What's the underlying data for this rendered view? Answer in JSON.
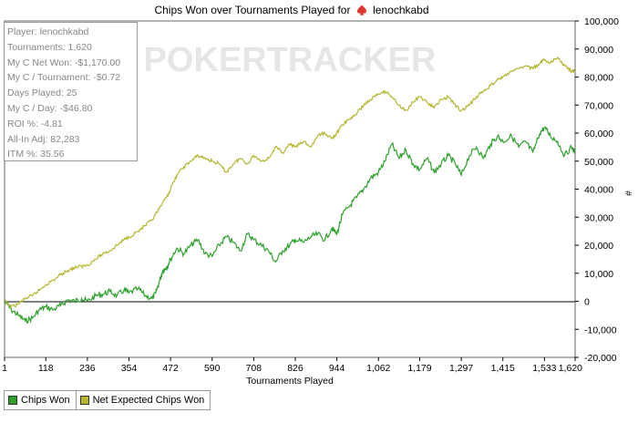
{
  "chart_data": {
    "type": "line",
    "title": "Chips Won over Tournaments Played for",
    "player_name": "lenochkabd",
    "xlabel": "Tournaments Played",
    "ylabel": "#",
    "xlim": [
      1,
      1620
    ],
    "ylim": [
      -20000,
      100000
    ],
    "x_ticks": [
      1,
      118,
      236,
      354,
      472,
      590,
      708,
      826,
      944,
      1062,
      1179,
      1297,
      1415,
      1533,
      1620
    ],
    "x_tick_labels": [
      "1",
      "118",
      "236",
      "354",
      "472",
      "590",
      "708",
      "826",
      "944",
      "1,062",
      "1,179",
      "1,297",
      "1,415",
      "1,533",
      "1,620"
    ],
    "y_ticks": [
      -20000,
      -10000,
      0,
      10000,
      20000,
      30000,
      40000,
      50000,
      60000,
      70000,
      80000,
      90000,
      100000
    ],
    "y_tick_labels": [
      "-20,000",
      "-10,000",
      "0",
      "10,000",
      "20,000",
      "30,000",
      "40,000",
      "50,000",
      "60,000",
      "70,000",
      "80,000",
      "90,000",
      "100,000"
    ],
    "grid": false,
    "legend_position": "bottom-left",
    "watermark": "POKERTRACKER",
    "series": [
      {
        "name": "Chips Won",
        "color": "#2ca02c",
        "x": [
          1,
          20,
          40,
          60,
          80,
          100,
          118,
          140,
          160,
          180,
          200,
          220,
          236,
          260,
          280,
          300,
          320,
          340,
          354,
          380,
          400,
          420,
          430,
          440,
          450,
          460,
          472,
          490,
          510,
          530,
          550,
          570,
          590,
          610,
          630,
          650,
          670,
          690,
          708,
          730,
          750,
          770,
          790,
          810,
          826,
          850,
          870,
          890,
          910,
          930,
          944,
          960,
          980,
          1000,
          1020,
          1040,
          1062,
          1080,
          1100,
          1120,
          1140,
          1160,
          1179,
          1200,
          1220,
          1240,
          1260,
          1280,
          1297,
          1320,
          1340,
          1360,
          1380,
          1400,
          1415,
          1440,
          1460,
          1480,
          1500,
          1520,
          1533,
          1550,
          1570,
          1590,
          1610,
          1620
        ],
        "y": [
          0,
          -3000,
          -5000,
          -7000,
          -6000,
          -3000,
          -2000,
          -3000,
          -1500,
          500,
          0,
          1000,
          0,
          2000,
          2500,
          3500,
          2000,
          4000,
          3000,
          4500,
          2000,
          1000,
          3000,
          7000,
          11000,
          12000,
          15000,
          19000,
          17000,
          20000,
          22000,
          17000,
          16000,
          20000,
          23000,
          21000,
          18000,
          24000,
          22000,
          20000,
          18000,
          14000,
          18000,
          20000,
          22000,
          21000,
          23000,
          24000,
          22000,
          26000,
          24000,
          31000,
          34000,
          37000,
          40000,
          44000,
          46000,
          50000,
          56000,
          51000,
          54000,
          49000,
          47000,
          51000,
          46000,
          49000,
          52000,
          49000,
          45000,
          52000,
          55000,
          51000,
          56000,
          59000,
          57000,
          59000,
          55000,
          57000,
          53000,
          60000,
          62000,
          59000,
          57000,
          52000,
          55000,
          53000
        ]
      },
      {
        "name": "Net Expected Chips Won",
        "color": "#b5b52e",
        "x": [
          1,
          20,
          40,
          60,
          80,
          100,
          118,
          140,
          160,
          180,
          200,
          220,
          236,
          260,
          280,
          300,
          320,
          340,
          354,
          380,
          400,
          420,
          440,
          460,
          472,
          490,
          510,
          530,
          550,
          570,
          590,
          610,
          630,
          650,
          670,
          690,
          708,
          730,
          750,
          770,
          790,
          810,
          826,
          850,
          870,
          890,
          910,
          930,
          944,
          960,
          980,
          1000,
          1020,
          1040,
          1062,
          1080,
          1100,
          1120,
          1140,
          1160,
          1179,
          1200,
          1220,
          1240,
          1260,
          1280,
          1297,
          1320,
          1340,
          1360,
          1380,
          1400,
          1415,
          1440,
          1460,
          1480,
          1500,
          1520,
          1533,
          1550,
          1570,
          1590,
          1610,
          1620
        ],
        "y": [
          0,
          -2000,
          -1000,
          1000,
          2000,
          4000,
          6000,
          7500,
          9500,
          11000,
          12000,
          12500,
          13000,
          15000,
          17000,
          18000,
          20000,
          22000,
          23000,
          25000,
          27000,
          29000,
          33000,
          37000,
          40000,
          45000,
          48000,
          50000,
          52000,
          51000,
          50000,
          49000,
          46000,
          49000,
          51000,
          49000,
          52000,
          50000,
          51000,
          55000,
          53000,
          56000,
          55000,
          57000,
          55000,
          59000,
          60000,
          58000,
          60000,
          63000,
          65000,
          67000,
          70000,
          72000,
          74000,
          75000,
          73000,
          70000,
          68000,
          71000,
          73000,
          71000,
          69000,
          72000,
          73000,
          70000,
          68000,
          70000,
          73000,
          75000,
          77000,
          79000,
          80000,
          82000,
          83000,
          84000,
          83000,
          85000,
          86000,
          85000,
          87000,
          84000,
          82000,
          82000
        ]
      }
    ]
  },
  "stats_box": {
    "lines": [
      "Player: lenochkabd",
      "Tournaments: 1,620",
      "My C Net Won: -$1,170.00",
      "My C / Tournament: -$0.72",
      "Days Played: 25",
      "My C / Day: -$46.80",
      "ROI %: -4.81",
      "All-In Adj: 82,283",
      "ITM %: 35.56"
    ]
  },
  "legend": {
    "items": [
      {
        "label": "Chips Won",
        "color": "#2ca02c"
      },
      {
        "label": "Net Expected Chips Won",
        "color": "#b5b52e"
      }
    ]
  }
}
